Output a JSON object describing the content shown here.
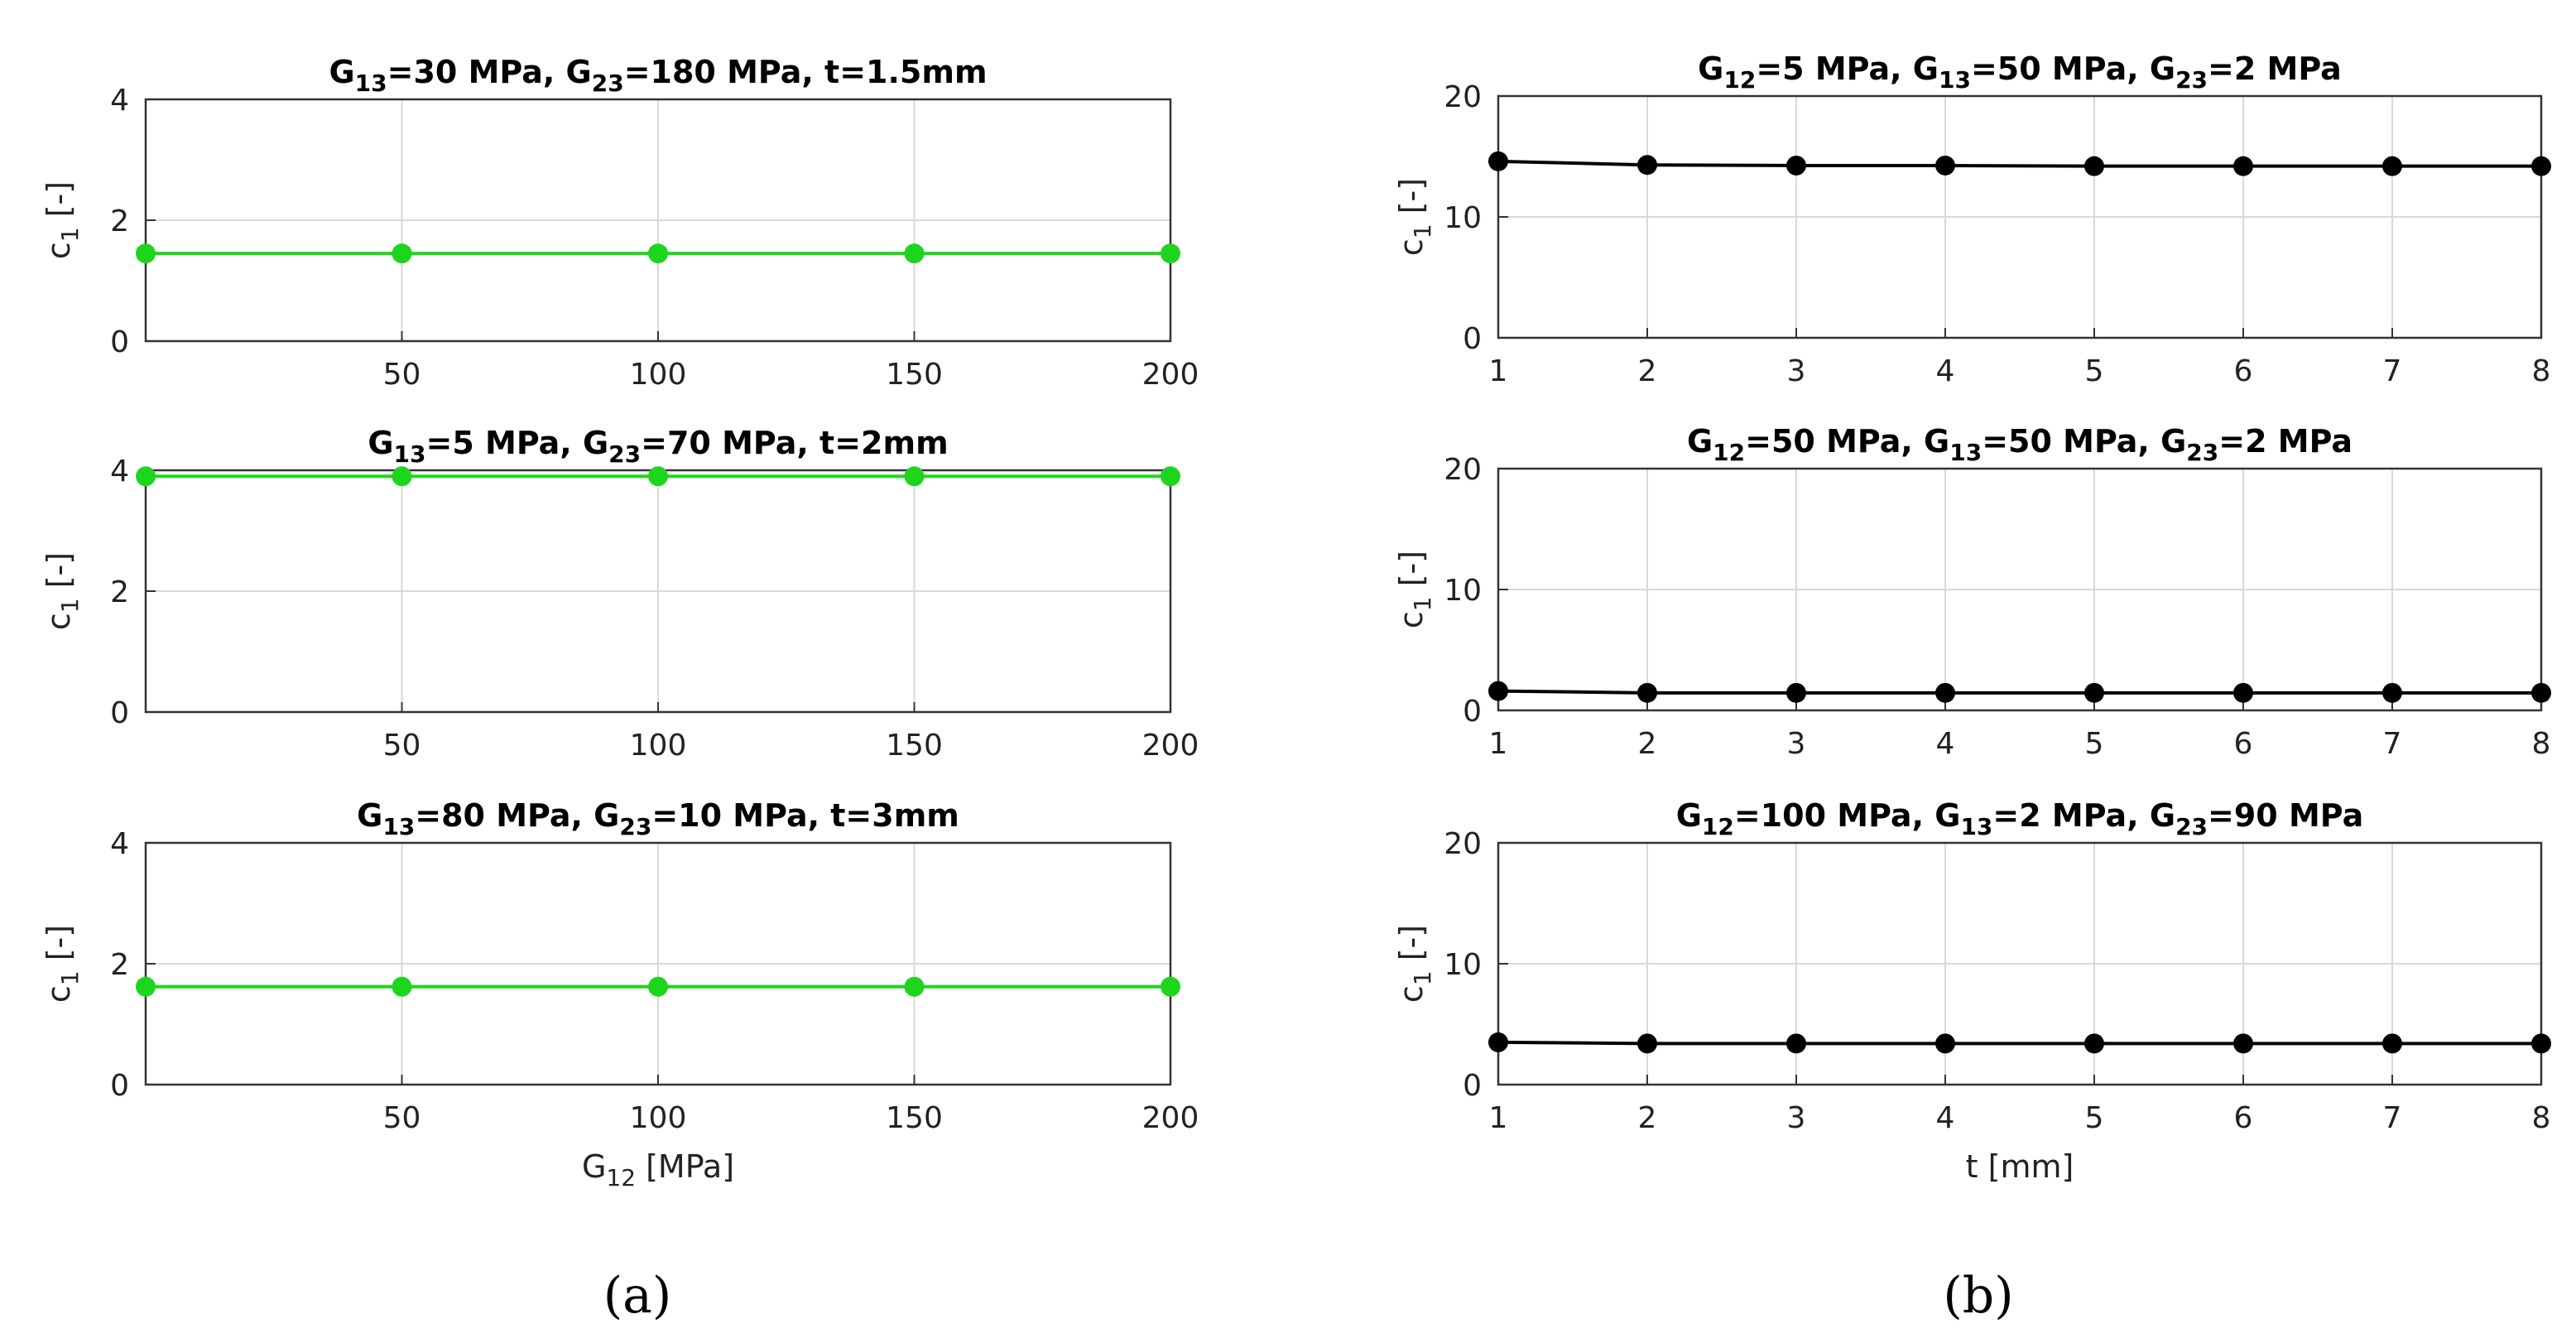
{
  "colors": {
    "green": "#1ed51e",
    "black": "#000000",
    "grid": "#d9d9d9",
    "axis": "#333333"
  },
  "panel_labels": [
    "(a)",
    "(b)"
  ],
  "chart_data": [
    {
      "type": "line",
      "panel": "a",
      "title": {
        "parts": [
          [
            "G",
            false
          ],
          [
            "13",
            true
          ],
          [
            "=30 MPa, G",
            false
          ],
          [
            "23",
            true
          ],
          [
            "=180 MPa, t=1.5mm",
            false
          ]
        ]
      },
      "ylabel": {
        "main": "c",
        "sub": "1",
        "rest": " [-]"
      },
      "xlabel": null,
      "xlim": [
        0,
        200
      ],
      "ylim": [
        0,
        4
      ],
      "xticks": [
        50,
        100,
        150,
        200
      ],
      "yticks": [
        0,
        2,
        4
      ],
      "series": [
        {
          "name": "c1",
          "color": "#1ed51e",
          "x": [
            0,
            50,
            100,
            150,
            200
          ],
          "y": [
            1.45,
            1.45,
            1.45,
            1.45,
            1.45
          ]
        }
      ]
    },
    {
      "type": "line",
      "panel": "a",
      "title": {
        "parts": [
          [
            "G",
            false
          ],
          [
            "13",
            true
          ],
          [
            "=5 MPa, G",
            false
          ],
          [
            "23",
            true
          ],
          [
            "=70 MPa, t=2mm",
            false
          ]
        ]
      },
      "ylabel": {
        "main": "c",
        "sub": "1",
        "rest": " [-]"
      },
      "xlabel": null,
      "xlim": [
        0,
        200
      ],
      "ylim": [
        0,
        4
      ],
      "xticks": [
        50,
        100,
        150,
        200
      ],
      "yticks": [
        0,
        2,
        4
      ],
      "series": [
        {
          "name": "c1",
          "color": "#1ed51e",
          "x": [
            0,
            50,
            100,
            150,
            200
          ],
          "y": [
            3.9,
            3.9,
            3.9,
            3.9,
            3.9
          ]
        }
      ]
    },
    {
      "type": "line",
      "panel": "a",
      "title": {
        "parts": [
          [
            "G",
            false
          ],
          [
            "13",
            true
          ],
          [
            "=80 MPa, G",
            false
          ],
          [
            "23",
            true
          ],
          [
            "=10 MPa, t=3mm",
            false
          ]
        ]
      },
      "ylabel": {
        "main": "c",
        "sub": "1",
        "rest": " [-]"
      },
      "xlabel": {
        "main": "G",
        "sub": "12",
        "rest": " [MPa]"
      },
      "xlim": [
        0,
        200
      ],
      "ylim": [
        0,
        4
      ],
      "xticks": [
        50,
        100,
        150,
        200
      ],
      "yticks": [
        0,
        2,
        4
      ],
      "series": [
        {
          "name": "c1",
          "color": "#1ed51e",
          "x": [
            0,
            50,
            100,
            150,
            200
          ],
          "y": [
            1.62,
            1.62,
            1.62,
            1.62,
            1.62
          ]
        }
      ]
    },
    {
      "type": "line",
      "panel": "b",
      "title": {
        "parts": [
          [
            "G",
            false
          ],
          [
            "12",
            true
          ],
          [
            "=5 MPa, G",
            false
          ],
          [
            "13",
            true
          ],
          [
            "=50 MPa, G",
            false
          ],
          [
            "23",
            true
          ],
          [
            "=2 MPa",
            false
          ]
        ]
      },
      "ylabel": {
        "main": "c",
        "sub": "1",
        "rest": " [-]"
      },
      "xlabel": null,
      "xlim": [
        1,
        8
      ],
      "ylim": [
        0,
        20
      ],
      "xticks": [
        1,
        2,
        3,
        4,
        5,
        6,
        7,
        8
      ],
      "yticks": [
        0,
        10,
        20
      ],
      "series": [
        {
          "name": "c1",
          "color": "#000000",
          "x": [
            1,
            2,
            3,
            4,
            5,
            6,
            7,
            8
          ],
          "y": [
            14.6,
            14.3,
            14.25,
            14.25,
            14.2,
            14.2,
            14.2,
            14.2
          ]
        }
      ]
    },
    {
      "type": "line",
      "panel": "b",
      "title": {
        "parts": [
          [
            "G",
            false
          ],
          [
            "12",
            true
          ],
          [
            "=50 MPa, G",
            false
          ],
          [
            "13",
            true
          ],
          [
            "=50 MPa, G",
            false
          ],
          [
            "23",
            true
          ],
          [
            "=2 MPa",
            false
          ]
        ]
      },
      "ylabel": {
        "main": "c",
        "sub": "1",
        "rest": " [-]"
      },
      "xlabel": null,
      "xlim": [
        1,
        8
      ],
      "ylim": [
        0,
        20
      ],
      "xticks": [
        1,
        2,
        3,
        4,
        5,
        6,
        7,
        8
      ],
      "yticks": [
        0,
        10,
        20
      ],
      "series": [
        {
          "name": "c1",
          "color": "#000000",
          "x": [
            1,
            2,
            3,
            4,
            5,
            6,
            7,
            8
          ],
          "y": [
            1.6,
            1.45,
            1.45,
            1.45,
            1.45,
            1.45,
            1.45,
            1.45
          ]
        }
      ]
    },
    {
      "type": "line",
      "panel": "b",
      "title": {
        "parts": [
          [
            "G",
            false
          ],
          [
            "12",
            true
          ],
          [
            "=100 MPa, G",
            false
          ],
          [
            "13",
            true
          ],
          [
            "=2 MPa, G",
            false
          ],
          [
            "23",
            true
          ],
          [
            "=90 MPa",
            false
          ]
        ]
      },
      "ylabel": {
        "main": "c",
        "sub": "1",
        "rest": " [-]"
      },
      "xlabel": {
        "main": "t [mm]",
        "sub": "",
        "rest": ""
      },
      "xlim": [
        1,
        8
      ],
      "ylim": [
        0,
        20
      ],
      "xticks": [
        1,
        2,
        3,
        4,
        5,
        6,
        7,
        8
      ],
      "yticks": [
        0,
        10,
        20
      ],
      "series": [
        {
          "name": "c1",
          "color": "#000000",
          "x": [
            1,
            2,
            3,
            4,
            5,
            6,
            7,
            8
          ],
          "y": [
            3.5,
            3.4,
            3.4,
            3.4,
            3.4,
            3.4,
            3.4,
            3.4
          ]
        }
      ]
    }
  ]
}
